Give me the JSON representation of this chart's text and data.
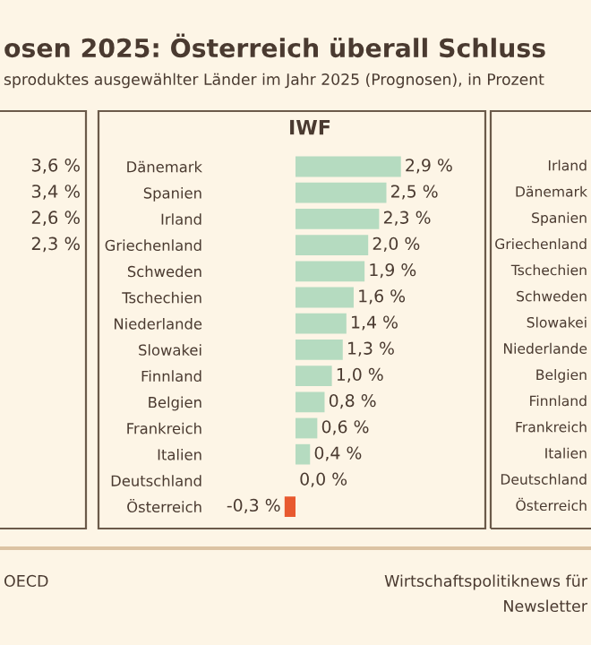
{
  "chart_data": [
    {
      "type": "other",
      "title": "osen 2025: Österreich überall Schluss",
      "subtitle": "sproduktes ausgewählter Länder im Jahr 2025 (Prognosen), in Prozent",
      "annotations": [
        "3,6 %",
        "3,4 %",
        "2,6 %",
        "2,3 %"
      ]
    },
    {
      "type": "bar",
      "orientation": "horizontal",
      "title": "IWF",
      "categories": [
        "Dänemark",
        "Spanien",
        "Irland",
        "Griechenland",
        "Schweden",
        "Tschechien",
        "Niederlande",
        "Slowakei",
        "Finnland",
        "Belgien",
        "Frankreich",
        "Italien",
        "Deutschland",
        "Österreich"
      ],
      "values": [
        2.9,
        2.5,
        2.3,
        2.0,
        1.9,
        1.6,
        1.4,
        1.3,
        1.0,
        0.8,
        0.6,
        0.4,
        0.0,
        -0.3
      ],
      "colors": [
        "#b5dbc0",
        "#b5dbc0",
        "#b5dbc0",
        "#b5dbc0",
        "#b5dbc0",
        "#b5dbc0",
        "#b5dbc0",
        "#b5dbc0",
        "#b5dbc0",
        "#b5dbc0",
        "#b5dbc0",
        "#b5dbc0",
        "#b5dbc0",
        "#e8592f"
      ],
      "value_labels": [
        "2,9 %",
        "2,5 %",
        "2,3 %",
        "2,0 %",
        "1,9 %",
        "1,6 %",
        "1,4 %",
        "1,3 %",
        "1,0 %",
        "0,8 %",
        "0,6 %",
        "0,4 %",
        "0,0 %",
        "-0,3 %"
      ],
      "annotations": [
        "OECD"
      ]
    },
    {
      "type": "other",
      "categories": [
        "Irland",
        "Dänemark",
        "Spanien",
        "Griechenland",
        "Tschechien",
        "Schweden",
        "Slowakei",
        "Niederlande",
        "Belgien",
        "Finnland",
        "Frankreich",
        "Italien",
        "Deutschland",
        "Österreich"
      ],
      "annotations": [
        "Wirtschaftspolitiknews für",
        "Newsletter"
      ]
    }
  ]
}
